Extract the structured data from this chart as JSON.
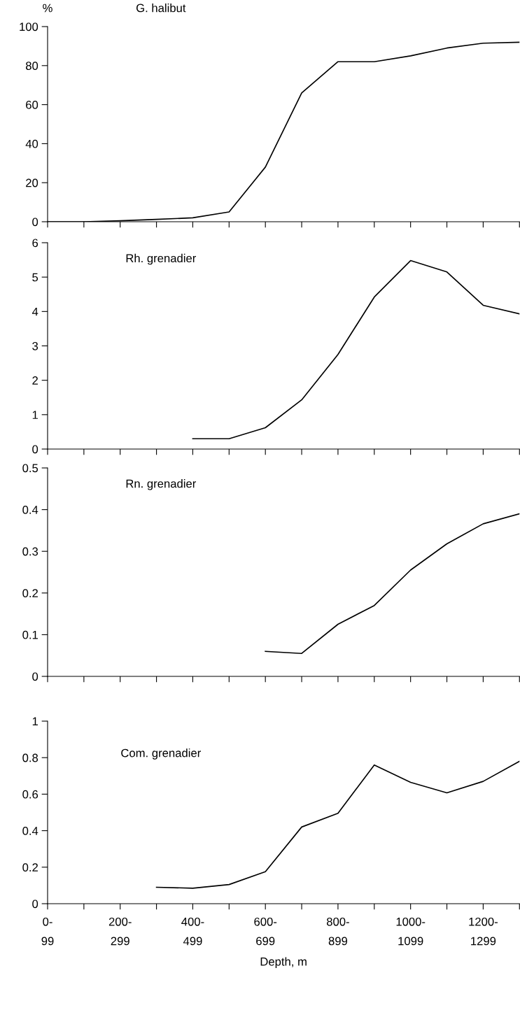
{
  "chart_data": [
    {
      "type": "line",
      "title": "G. halibut",
      "ylabel": "%",
      "values": [
        0,
        0,
        0.5,
        1.2,
        2,
        5,
        28,
        66,
        82,
        82,
        85,
        89,
        91.5,
        92
      ],
      "color": "#000000",
      "ylim": [
        0,
        100
      ],
      "yticks": [
        0,
        20,
        40,
        60,
        80,
        100
      ],
      "tick_labels": "y",
      "grid": false,
      "legend": false
    },
    {
      "type": "line",
      "title": "Rh. grenadier",
      "values": [
        null,
        null,
        null,
        null,
        0.3,
        0.3,
        0.62,
        1.43,
        2.75,
        4.42,
        5.48,
        5.15,
        4.18,
        3.93
      ],
      "color": "#000000",
      "ylim": [
        0,
        6
      ],
      "yticks": [
        0,
        1,
        2,
        3,
        4,
        5,
        6
      ],
      "tick_labels": "y",
      "grid": false,
      "legend": false
    },
    {
      "type": "line",
      "title": "Rn. grenadier",
      "values": [
        null,
        null,
        null,
        null,
        null,
        null,
        0.06,
        0.055,
        0.125,
        0.17,
        0.255,
        0.318,
        0.366,
        0.39
      ],
      "color": "#000000",
      "ylim": [
        0,
        0.5
      ],
      "yticks": [
        0,
        0.1,
        0.2,
        0.3,
        0.4,
        0.5
      ],
      "tick_labels": "y",
      "grid": false,
      "legend": false
    },
    {
      "type": "line",
      "title": "Com. grenadier",
      "xlabel": "Depth, m",
      "categories": [
        "0-\n99",
        null,
        "200-\n299",
        null,
        "400-\n499",
        null,
        "600-\n699",
        null,
        "800-\n899",
        null,
        "1000-\n1099",
        null,
        "1200-\n1299",
        null
      ],
      "values": [
        null,
        null,
        null,
        0.09,
        0.085,
        0.105,
        0.175,
        0.42,
        0.495,
        0.76,
        0.665,
        0.607,
        0.67,
        0.78
      ],
      "color": "#000000",
      "ylim": [
        0,
        1
      ],
      "yticks": [
        0,
        0.2,
        0.4,
        0.6,
        0.8,
        1
      ],
      "grid": false,
      "legend": false
    }
  ]
}
